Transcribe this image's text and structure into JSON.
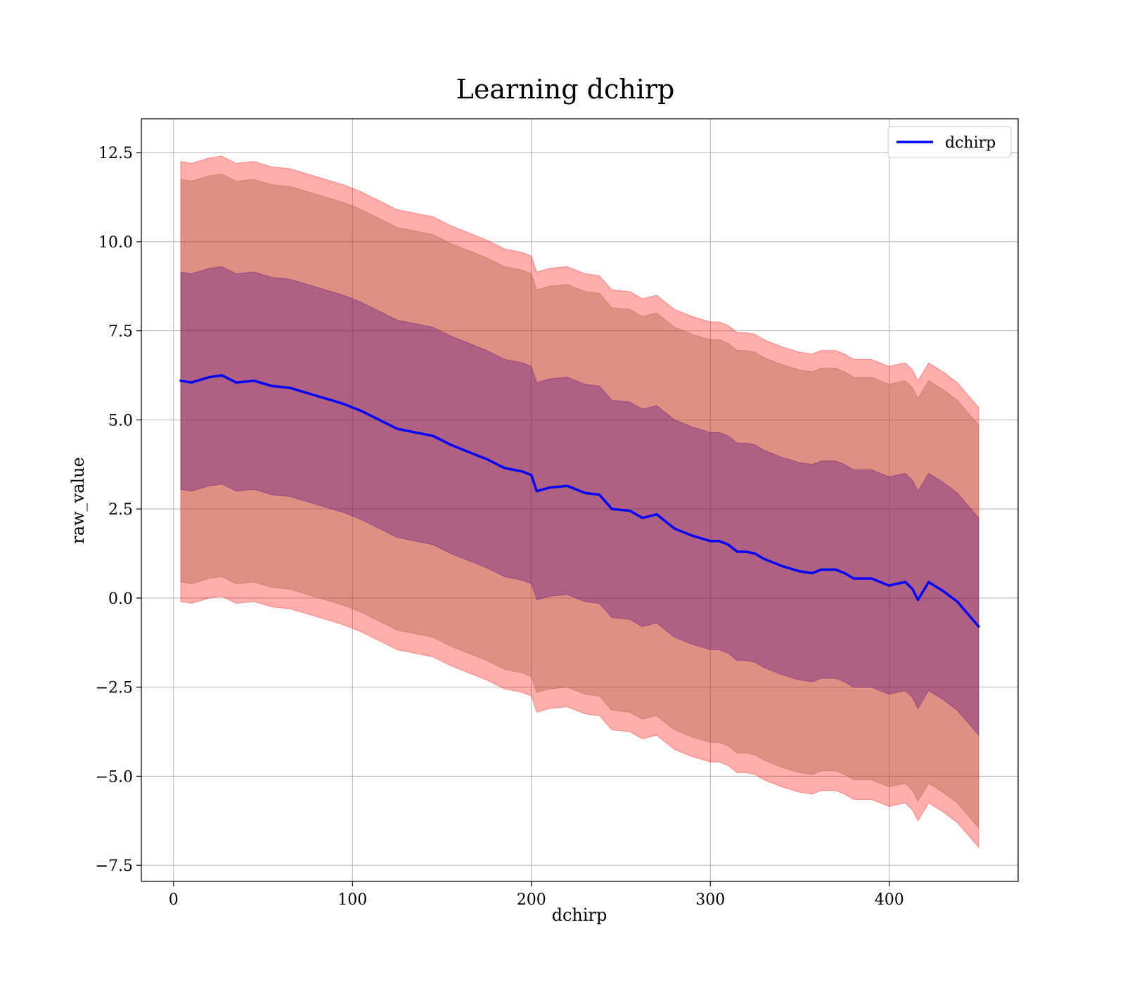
{
  "chart_data": {
    "type": "line",
    "title": "Learning dchirp",
    "xlabel": "dchirp",
    "ylabel": "raw_value",
    "xlim": [
      -18,
      472
    ],
    "ylim": [
      -7.95,
      13.45
    ],
    "grid": true,
    "legend_position": "top-right",
    "x_ticks": [
      0,
      100,
      200,
      300,
      400
    ],
    "x_tick_labels": [
      "0",
      "100",
      "200",
      "300",
      "400"
    ],
    "y_ticks": [
      -7.5,
      -5.0,
      -2.5,
      0.0,
      2.5,
      5.0,
      7.5,
      10.0,
      12.5
    ],
    "y_tick_labels": [
      "−7.5",
      "−5.0",
      "−2.5",
      "0.0",
      "2.5",
      "5.0",
      "7.5",
      "10.0",
      "12.5"
    ],
    "colors": {
      "line": "#0000ff",
      "band_outer": "#ff0000",
      "band_middle": "#a0522d",
      "band_inner": "#4b0082"
    },
    "series": [
      {
        "name": "dchirp",
        "x": [
          4,
          10,
          20,
          27,
          35,
          45,
          55,
          65,
          75,
          85,
          95,
          105,
          115,
          125,
          135,
          145,
          155,
          165,
          175,
          185,
          195,
          200,
          203,
          210,
          220,
          230,
          238,
          245,
          255,
          262,
          270,
          280,
          290,
          300,
          305,
          310,
          315,
          320,
          325,
          330,
          340,
          350,
          357,
          362,
          370,
          375,
          380,
          385,
          390,
          395,
          400,
          404,
          409,
          413,
          416,
          422,
          430,
          438,
          450
        ],
        "y": [
          6.1,
          6.05,
          6.2,
          6.25,
          6.05,
          6.1,
          5.95,
          5.9,
          5.75,
          5.6,
          5.45,
          5.25,
          5.0,
          4.75,
          4.65,
          4.55,
          4.3,
          4.1,
          3.9,
          3.65,
          3.55,
          3.45,
          3.0,
          3.1,
          3.15,
          2.95,
          2.9,
          2.5,
          2.45,
          2.25,
          2.35,
          1.95,
          1.75,
          1.6,
          1.6,
          1.5,
          1.3,
          1.3,
          1.25,
          1.1,
          0.9,
          0.75,
          0.7,
          0.8,
          0.8,
          0.7,
          0.55,
          0.55,
          0.55,
          0.45,
          0.35,
          0.4,
          0.45,
          0.25,
          -0.05,
          0.45,
          0.2,
          -0.1,
          -0.8
        ]
      }
    ],
    "bands": [
      {
        "level": "outer",
        "lower_offset": -6.2,
        "upper_offset": 6.15
      },
      {
        "level": "middle",
        "lower_offset": -5.65,
        "upper_offset": 5.65
      },
      {
        "level": "inner",
        "lower_offset": -3.05,
        "upper_offset": 3.05
      }
    ]
  }
}
